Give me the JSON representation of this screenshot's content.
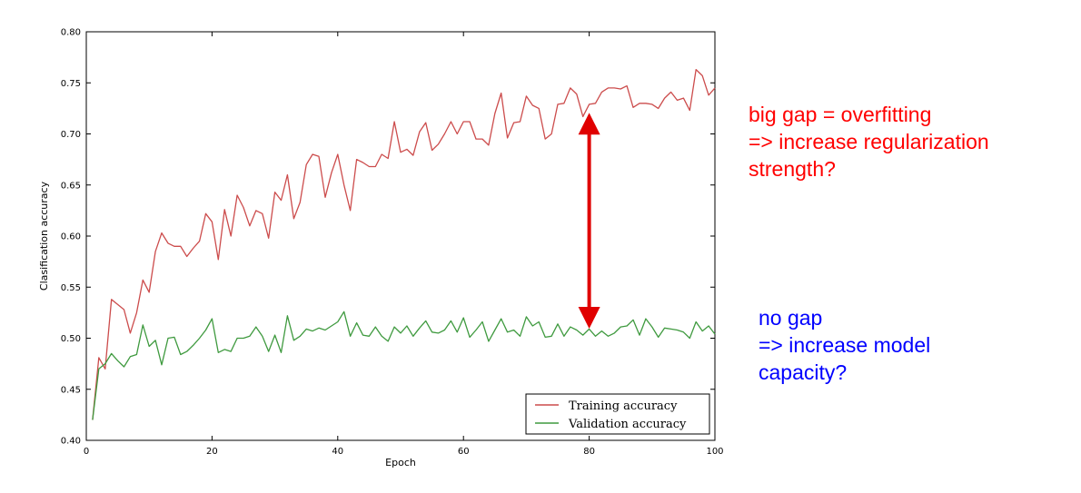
{
  "chart_data": {
    "type": "line",
    "title": "",
    "xlabel": "Epoch",
    "ylabel": "Clasification accuracy",
    "xlim": [
      0,
      100
    ],
    "ylim": [
      0.4,
      0.8
    ],
    "xticks": [
      "0",
      "20",
      "40",
      "60",
      "80",
      "100"
    ],
    "yticks": [
      "0.40",
      "0.45",
      "0.50",
      "0.55",
      "0.60",
      "0.65",
      "0.70",
      "0.75",
      "0.80"
    ],
    "grid": false,
    "legend_position": "lower-right",
    "x": [
      1,
      2,
      3,
      4,
      5,
      6,
      7,
      8,
      9,
      10,
      11,
      12,
      13,
      14,
      15,
      16,
      17,
      18,
      19,
      20,
      21,
      22,
      23,
      24,
      25,
      26,
      27,
      28,
      29,
      30,
      31,
      32,
      33,
      34,
      35,
      36,
      37,
      38,
      39,
      40,
      41,
      42,
      43,
      44,
      45,
      46,
      47,
      48,
      49,
      50,
      51,
      52,
      53,
      54,
      55,
      56,
      57,
      58,
      59,
      60,
      61,
      62,
      63,
      64,
      65,
      66,
      67,
      68,
      69,
      70,
      71,
      72,
      73,
      74,
      75,
      76,
      77,
      78,
      79,
      80,
      81,
      82,
      83,
      84,
      85,
      86,
      87,
      88,
      89,
      90,
      91,
      92,
      93,
      94,
      95,
      96,
      97,
      98,
      99,
      100
    ],
    "series": [
      {
        "name": "Training accuracy",
        "color": "#cc4c4c",
        "values": [
          0.42,
          0.481,
          0.47,
          0.538,
          0.533,
          0.528,
          0.505,
          0.525,
          0.557,
          0.545,
          0.585,
          0.603,
          0.593,
          0.59,
          0.59,
          0.58,
          0.588,
          0.595,
          0.622,
          0.614,
          0.577,
          0.626,
          0.6,
          0.64,
          0.628,
          0.61,
          0.625,
          0.622,
          0.598,
          0.643,
          0.635,
          0.66,
          0.617,
          0.633,
          0.67,
          0.68,
          0.678,
          0.638,
          0.662,
          0.68,
          0.65,
          0.625,
          0.675,
          0.672,
          0.668,
          0.668,
          0.68,
          0.676,
          0.712,
          0.682,
          0.685,
          0.679,
          0.702,
          0.711,
          0.684,
          0.69,
          0.7,
          0.712,
          0.7,
          0.712,
          0.712,
          0.695,
          0.695,
          0.689,
          0.72,
          0.74,
          0.696,
          0.711,
          0.712,
          0.737,
          0.728,
          0.725,
          0.695,
          0.7,
          0.729,
          0.73,
          0.745,
          0.739,
          0.717,
          0.729,
          0.73,
          0.741,
          0.745,
          0.745,
          0.744,
          0.747,
          0.726,
          0.73,
          0.73,
          0.729,
          0.725,
          0.735,
          0.741,
          0.733,
          0.735,
          0.723,
          0.763,
          0.757,
          0.738,
          0.745
        ]
      },
      {
        "name": "Validation accuracy",
        "color": "#3f9a3f",
        "values": [
          0.42,
          0.47,
          0.475,
          0.485,
          0.478,
          0.472,
          0.482,
          0.484,
          0.513,
          0.492,
          0.498,
          0.474,
          0.5,
          0.501,
          0.484,
          0.487,
          0.493,
          0.5,
          0.508,
          0.519,
          0.486,
          0.489,
          0.487,
          0.5,
          0.5,
          0.502,
          0.511,
          0.502,
          0.487,
          0.503,
          0.486,
          0.522,
          0.498,
          0.502,
          0.509,
          0.507,
          0.51,
          0.508,
          0.512,
          0.516,
          0.526,
          0.502,
          0.515,
          0.503,
          0.502,
          0.511,
          0.502,
          0.497,
          0.511,
          0.505,
          0.512,
          0.502,
          0.51,
          0.517,
          0.506,
          0.505,
          0.508,
          0.517,
          0.506,
          0.52,
          0.501,
          0.508,
          0.516,
          0.497,
          0.508,
          0.519,
          0.506,
          0.508,
          0.502,
          0.521,
          0.512,
          0.516,
          0.501,
          0.502,
          0.514,
          0.502,
          0.511,
          0.508,
          0.503,
          0.509,
          0.502,
          0.507,
          0.502,
          0.505,
          0.511,
          0.512,
          0.518,
          0.503,
          0.519,
          0.511,
          0.501,
          0.51,
          0.509,
          0.508,
          0.506,
          0.5,
          0.516,
          0.507,
          0.512,
          0.504
        ]
      }
    ]
  },
  "annotations": {
    "overfitting": {
      "color": "#ff0000",
      "lines": [
        "big gap = overfitting",
        "=> increase regularization",
        "strength?"
      ]
    },
    "no_gap": {
      "color": "#0000ff",
      "lines": [
        "no gap",
        "=> increase model",
        "capacity?"
      ]
    }
  },
  "gap_arrow": {
    "color": "#e00000",
    "x": 80,
    "y_from": 0.52,
    "y_to": 0.71
  }
}
